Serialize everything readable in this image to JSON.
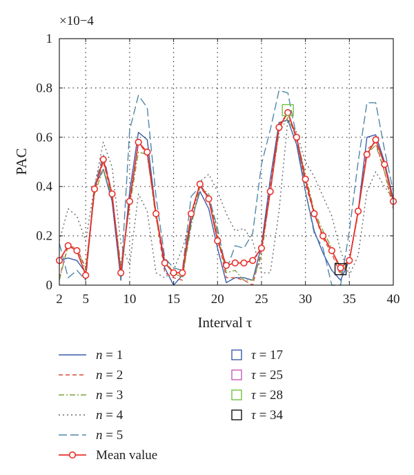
{
  "chart_data": {
    "type": "line",
    "ylabel": "PAC",
    "xlabel": "Interval τ",
    "y_multiplier": "×10−4",
    "xlim": [
      2,
      40
    ],
    "ylim": [
      0,
      1
    ],
    "x_ticks": [
      2,
      5,
      10,
      15,
      20,
      25,
      30,
      35,
      40
    ],
    "y_ticks": [
      "0",
      "0.2",
      "0.4",
      "0.6",
      "0.8",
      "1"
    ],
    "y_tick_values": [
      0,
      0.2,
      0.4,
      0.6,
      0.8,
      1
    ],
    "grid": "dotted",
    "x": [
      2,
      3,
      4,
      5,
      6,
      7,
      8,
      9,
      10,
      11,
      12,
      13,
      14,
      15,
      16,
      17,
      18,
      19,
      20,
      21,
      22,
      23,
      24,
      25,
      26,
      27,
      28,
      29,
      30,
      31,
      32,
      33,
      34,
      35,
      36,
      37,
      38,
      39,
      40
    ],
    "series": [
      {
        "name": "n = 1",
        "legend_var": "n",
        "legend_val": "1",
        "color": "#3a5aa8",
        "dash": "",
        "values": [
          0.1,
          0.11,
          0.1,
          0.05,
          0.4,
          0.47,
          0.34,
          0.02,
          0.38,
          0.62,
          0.59,
          0.29,
          0.07,
          0.0,
          0.04,
          0.26,
          0.38,
          0.31,
          0.15,
          0.01,
          0.03,
          0.03,
          0.02,
          0.16,
          0.43,
          0.66,
          0.67,
          0.57,
          0.38,
          0.22,
          0.13,
          0.06,
          0.02,
          0.1,
          0.3,
          0.6,
          0.61,
          0.5,
          0.35
        ]
      },
      {
        "name": "n = 2",
        "legend_var": "n",
        "legend_val": "2",
        "color": "#d64a3b",
        "dash": "6,4",
        "values": [
          0.03,
          0.16,
          0.15,
          0.07,
          0.38,
          0.5,
          0.36,
          0.05,
          0.35,
          0.58,
          0.53,
          0.28,
          0.05,
          0.03,
          0.02,
          0.29,
          0.4,
          0.35,
          0.2,
          0.03,
          0.03,
          0.02,
          0.0,
          0.14,
          0.4,
          0.65,
          0.7,
          0.59,
          0.41,
          0.29,
          0.19,
          0.13,
          0.04,
          0.1,
          0.29,
          0.55,
          0.58,
          0.46,
          0.31
        ]
      },
      {
        "name": "n = 3",
        "legend_var": "n",
        "legend_val": "3",
        "color": "#7ca03c",
        "dash": "8,3,2,3",
        "values": [
          0.02,
          0.16,
          0.15,
          0.06,
          0.37,
          0.47,
          0.36,
          0.08,
          0.32,
          0.54,
          0.53,
          0.27,
          0.1,
          0.05,
          0.03,
          0.24,
          0.4,
          0.37,
          0.21,
          0.05,
          0.06,
          0.02,
          0.02,
          0.12,
          0.38,
          0.62,
          0.68,
          0.6,
          0.45,
          0.3,
          0.22,
          0.15,
          0.05,
          0.1,
          0.3,
          0.53,
          0.57,
          0.46,
          0.33
        ]
      },
      {
        "name": "n = 4",
        "legend_var": "n",
        "legend_val": "4",
        "color": "#666666",
        "dash": "2,4",
        "values": [
          0.18,
          0.31,
          0.28,
          0.18,
          0.4,
          0.58,
          0.48,
          0.17,
          0.08,
          0.37,
          0.3,
          0.05,
          0.03,
          0.06,
          0.15,
          0.26,
          0.42,
          0.45,
          0.38,
          0.29,
          0.22,
          0.23,
          0.18,
          0.05,
          0.05,
          0.3,
          0.67,
          0.62,
          0.5,
          0.44,
          0.36,
          0.28,
          0.14,
          0.04,
          0.12,
          0.38,
          0.46,
          0.4,
          0.35
        ]
      },
      {
        "name": "n = 5",
        "legend_var": "n",
        "legend_val": "5",
        "color": "#4f86a8",
        "dash": "12,5",
        "values": [
          0.17,
          0.03,
          0.06,
          0.02,
          0.4,
          0.53,
          0.37,
          0.02,
          0.63,
          0.77,
          0.72,
          0.36,
          0.11,
          0.07,
          0.06,
          0.36,
          0.4,
          0.36,
          0.23,
          0.06,
          0.16,
          0.15,
          0.21,
          0.49,
          0.63,
          0.79,
          0.78,
          0.6,
          0.38,
          0.21,
          0.15,
          0.0,
          0.0,
          0.22,
          0.5,
          0.74,
          0.74,
          0.55,
          0.38
        ]
      },
      {
        "name": "Mean value",
        "color": "#e8302a",
        "dash": "",
        "markers": true,
        "values": [
          0.1,
          0.16,
          0.14,
          0.04,
          0.39,
          0.51,
          0.37,
          0.05,
          0.34,
          0.58,
          0.54,
          0.29,
          0.09,
          0.05,
          0.05,
          0.29,
          0.41,
          0.35,
          0.18,
          0.08,
          0.09,
          0.09,
          0.1,
          0.15,
          0.38,
          0.64,
          0.7,
          0.6,
          0.43,
          0.29,
          0.2,
          0.14,
          0.07,
          0.1,
          0.3,
          0.53,
          0.59,
          0.49,
          0.34
        ]
      }
    ],
    "highlights": [
      {
        "name": "τ = 17",
        "legend_var": "τ",
        "legend_val": "17",
        "color": "#3a5aa8"
      },
      {
        "name": "τ = 25",
        "legend_var": "τ",
        "legend_val": "25",
        "color": "#c25ab8"
      },
      {
        "name": "τ = 28",
        "legend_var": "τ",
        "legend_val": "28",
        "color": "#6ec23c",
        "x": 28,
        "y": 0.71
      },
      {
        "name": "τ = 34",
        "legend_var": "τ",
        "legend_val": "34",
        "color": "#111111",
        "x": 34,
        "y": 0.065
      }
    ]
  }
}
